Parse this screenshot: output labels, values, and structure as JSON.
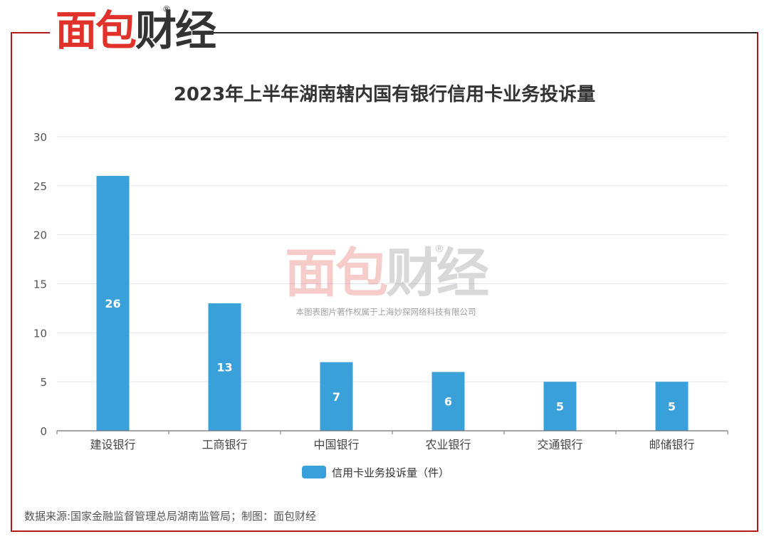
{
  "brand": {
    "logo_text_red": "面包",
    "logo_text_dark": "财经",
    "registered_mark": "®",
    "accent_color": "#e0322a",
    "frame_color": "#b31b1b"
  },
  "watermark": {
    "logo_red": "面包",
    "logo_dark": "财经",
    "registered_mark": "®",
    "caption": "本图表图片著作权属于上海妙探网络科技有限公司"
  },
  "chart_data": {
    "type": "bar",
    "title": "2023年上半年湖南辖内国有银行信用卡业务投诉量",
    "categories": [
      "建设银行",
      "工商银行",
      "中国银行",
      "农业银行",
      "交通银行",
      "邮储银行"
    ],
    "series": [
      {
        "name": "信用卡业务投诉量（件）",
        "values": [
          26,
          13,
          7,
          6,
          5,
          5
        ],
        "color": "#3aa0da"
      }
    ],
    "y_ticks": [
      "0",
      "5",
      "10",
      "15",
      "20",
      "25",
      "30"
    ],
    "ylim": [
      0,
      30
    ],
    "grid": true,
    "data_labels": true,
    "legend_position": "bottom-center"
  },
  "source_note": "数据来源:国家金融监督管理总局湖南监管局；制图：面包财经"
}
